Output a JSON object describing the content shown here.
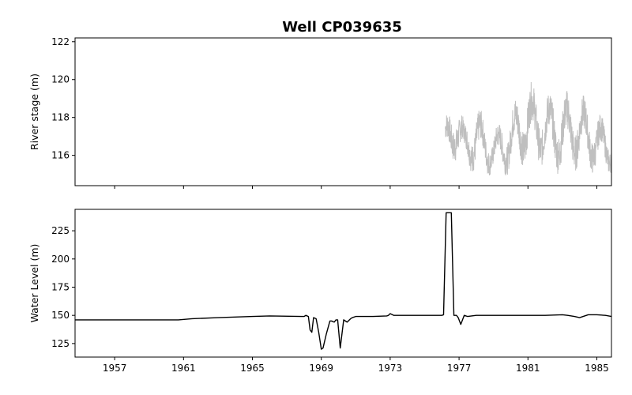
{
  "chart_data": {
    "type": "line",
    "title": "Well CP039635",
    "x_ticks": [
      "1957",
      "1961",
      "1965",
      "1969",
      "1973",
      "1977",
      "1981",
      "1985"
    ],
    "xlim": [
      1954.7,
      1985.85
    ],
    "panels": [
      {
        "name": "river-stage",
        "ylabel": "River stage (m)",
        "ylim": [
          114.4,
          122.2
        ],
        "y_ticks": [
          116,
          118,
          120,
          122
        ],
        "color": "#bfbfbf",
        "series": [
          {
            "type": "oscillating-band",
            "x_range": [
              1976.2,
              1985.85
            ],
            "envelope": [
              {
                "x": 1976.2,
                "low": 115.2,
                "high": 118.1
              },
              {
                "x": 1976.8,
                "low": 115.6,
                "high": 119.5
              },
              {
                "x": 1977.3,
                "low": 115.3,
                "high": 117.8
              },
              {
                "x": 1978.0,
                "low": 114.9,
                "high": 118.8
              },
              {
                "x": 1979.0,
                "low": 114.9,
                "high": 117.4
              },
              {
                "x": 1980.0,
                "low": 114.9,
                "high": 118.7
              },
              {
                "x": 1981.0,
                "low": 115.4,
                "high": 120.1
              },
              {
                "x": 1982.0,
                "low": 115.3,
                "high": 119.4
              },
              {
                "x": 1983.0,
                "low": 114.9,
                "high": 119.5
              },
              {
                "x": 1984.0,
                "low": 115.2,
                "high": 119.4
              },
              {
                "x": 1985.0,
                "low": 114.9,
                "high": 118.5
              },
              {
                "x": 1985.85,
                "low": 115.0,
                "high": 117.5
              }
            ]
          }
        ]
      },
      {
        "name": "water-level",
        "ylabel": "Water Level (m)",
        "ylim": [
          113,
          244
        ],
        "y_ticks": [
          125,
          150,
          175,
          200,
          225
        ],
        "color": "#000000",
        "series": [
          {
            "x": [
              1954.7,
              1960.7,
              1961.5,
              1963.0,
              1965.0,
              1966.0,
              1968.0,
              1968.1,
              1968.25,
              1968.35,
              1968.45,
              1968.55,
              1968.7,
              1968.85,
              1969.0,
              1969.1,
              1969.3,
              1969.5,
              1969.6,
              1969.75,
              1969.85,
              1969.95,
              1970.1,
              1970.3,
              1970.5,
              1970.7,
              1970.8,
              1971.0,
              1972.0,
              1972.8,
              1972.9,
              1973.0,
              1973.2,
              1974.0,
              1975.0,
              1976.0,
              1976.1,
              1976.25,
              1976.55,
              1976.7,
              1976.85,
              1976.95,
              1977.1,
              1977.3,
              1977.5,
              1978.0,
              1980.0,
              1982.0,
              1983.0,
              1983.3,
              1983.7,
              1984.0,
              1984.5,
              1985.0,
              1985.5,
              1985.85
            ],
            "y": [
              146,
              146,
              147,
              148,
              149,
              149.5,
              149,
              150,
              149,
              137,
              135,
              148,
              147,
              135,
              120,
              121,
              134,
              145,
              145,
              144,
              146,
              146,
              121,
              146,
              144,
              147,
              148,
              149,
              149,
              149.5,
              150,
              151.5,
              150,
              150,
              150,
              150,
              150.5,
              241,
              241,
              150,
              150,
              148,
              142,
              150,
              149,
              150,
              150,
              150,
              150.5,
              150,
              149,
              148,
              150.5,
              150.5,
              150,
              149
            ]
          }
        ]
      }
    ]
  }
}
